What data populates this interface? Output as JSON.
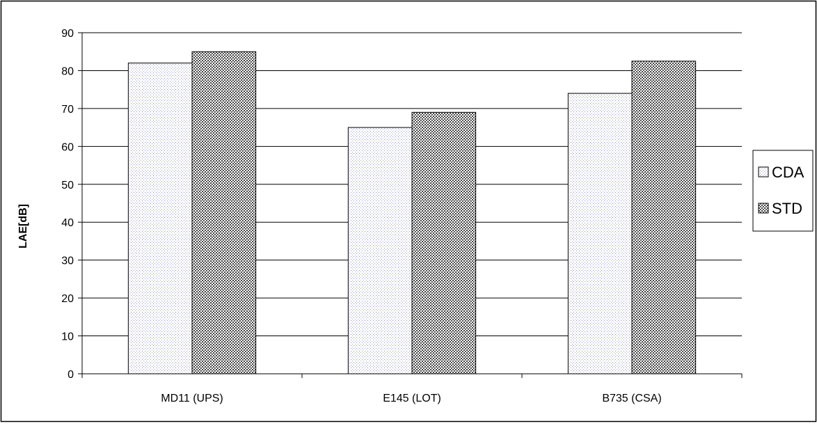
{
  "chart_data": {
    "type": "bar",
    "title": "",
    "xlabel": "",
    "ylabel": "LAE[dB]",
    "categories": [
      "MD11 (UPS)",
      "E145 (LOT)",
      "B735 (CSA)"
    ],
    "series": [
      {
        "name": "CDA",
        "values": [
          82,
          65,
          74
        ],
        "pattern": "light-dots",
        "color": "#9a9ad6"
      },
      {
        "name": "STD",
        "values": [
          85,
          69,
          82.5
        ],
        "pattern": "dark-checker",
        "color": "#555555"
      }
    ],
    "ylim": [
      0,
      90
    ],
    "yticks": [
      0,
      10,
      20,
      30,
      40,
      50,
      60,
      70,
      80,
      90
    ],
    "grid": true,
    "legend": "right"
  }
}
